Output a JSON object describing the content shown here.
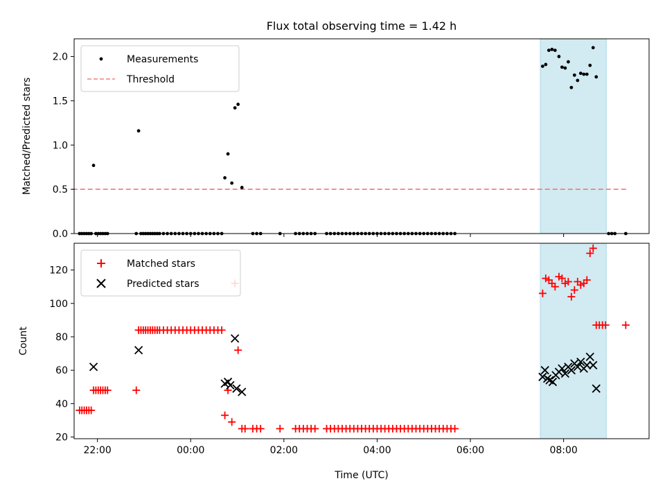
{
  "title": "Flux total observing time = 1.42 h",
  "colors": {
    "measurement": "#000000",
    "threshold": "#f08080",
    "matched": "#ff0000",
    "predicted": "#000000",
    "span": "#add8e6"
  },
  "chart_data": [
    {
      "type": "scatter",
      "ylabel": "Matched/Predicted stars",
      "xlabel": "",
      "ylim": [
        0,
        2.2
      ],
      "yticks": [
        0.0,
        0.5,
        1.0,
        1.5,
        2.0
      ],
      "ytick_labels": [
        "0.0",
        "0.5",
        "1.0",
        "1.5",
        "2.0"
      ],
      "xlim": [
        "21:30",
        "09:50"
      ],
      "grid": false,
      "legend": "top-left",
      "highlight_span": {
        "x": [
          "07:30",
          "08:55"
        ]
      },
      "threshold": {
        "name": "Threshold",
        "y": 0.5,
        "x": [
          "21:28",
          "09:22"
        ]
      },
      "series": [
        {
          "name": "Measurements",
          "points": [
            [
              "21:37",
              0
            ],
            [
              "21:40",
              0
            ],
            [
              "21:43",
              0
            ],
            [
              "21:46",
              0
            ],
            [
              "21:49",
              0
            ],
            [
              "21:52",
              0
            ],
            [
              "21:55",
              0.77
            ],
            [
              "21:58",
              0
            ],
            [
              "22:01",
              0
            ],
            [
              "22:04",
              0
            ],
            [
              "22:07",
              0
            ],
            [
              "22:10",
              0
            ],
            [
              "22:13",
              0
            ],
            [
              "22:50",
              0
            ],
            [
              "22:53",
              1.16
            ],
            [
              "22:56",
              0
            ],
            [
              "22:59",
              0
            ],
            [
              "23:02",
              0
            ],
            [
              "23:05",
              0
            ],
            [
              "23:08",
              0
            ],
            [
              "23:11",
              0
            ],
            [
              "23:14",
              0
            ],
            [
              "23:17",
              0
            ],
            [
              "23:20",
              0
            ],
            [
              "23:25",
              0
            ],
            [
              "23:30",
              0
            ],
            [
              "23:35",
              0
            ],
            [
              "23:40",
              0
            ],
            [
              "23:45",
              0
            ],
            [
              "23:50",
              0
            ],
            [
              "23:55",
              0
            ],
            [
              "00:00",
              0
            ],
            [
              "00:05",
              0
            ],
            [
              "00:10",
              0
            ],
            [
              "00:15",
              0
            ],
            [
              "00:20",
              0
            ],
            [
              "00:25",
              0
            ],
            [
              "00:30",
              0
            ],
            [
              "00:35",
              0
            ],
            [
              "00:40",
              0
            ],
            [
              "00:44",
              0.63
            ],
            [
              "00:48",
              0.9
            ],
            [
              "00:53",
              0.57
            ],
            [
              "00:57",
              1.42
            ],
            [
              "01:01",
              1.46
            ],
            [
              "01:06",
              0.52
            ],
            [
              "01:20",
              0
            ],
            [
              "01:25",
              0
            ],
            [
              "01:30",
              0
            ],
            [
              "01:55",
              0
            ],
            [
              "02:15",
              0
            ],
            [
              "02:20",
              0
            ],
            [
              "02:25",
              0
            ],
            [
              "02:30",
              0
            ],
            [
              "02:35",
              0
            ],
            [
              "02:40",
              0
            ],
            [
              "02:55",
              0
            ],
            [
              "03:00",
              0
            ],
            [
              "03:05",
              0
            ],
            [
              "03:10",
              0
            ],
            [
              "03:15",
              0
            ],
            [
              "03:20",
              0
            ],
            [
              "03:25",
              0
            ],
            [
              "03:30",
              0
            ],
            [
              "03:35",
              0
            ],
            [
              "03:40",
              0
            ],
            [
              "03:45",
              0
            ],
            [
              "03:50",
              0
            ],
            [
              "03:55",
              0
            ],
            [
              "04:00",
              0
            ],
            [
              "04:05",
              0
            ],
            [
              "04:10",
              0
            ],
            [
              "04:15",
              0
            ],
            [
              "04:20",
              0
            ],
            [
              "04:25",
              0
            ],
            [
              "04:30",
              0
            ],
            [
              "04:35",
              0
            ],
            [
              "04:40",
              0
            ],
            [
              "04:45",
              0
            ],
            [
              "04:50",
              0
            ],
            [
              "04:55",
              0
            ],
            [
              "05:00",
              0
            ],
            [
              "05:05",
              0
            ],
            [
              "05:10",
              0
            ],
            [
              "05:15",
              0
            ],
            [
              "05:20",
              0
            ],
            [
              "05:25",
              0
            ],
            [
              "05:30",
              0
            ],
            [
              "05:35",
              0
            ],
            [
              "05:40",
              0
            ],
            [
              "07:33",
              1.89
            ],
            [
              "07:37",
              1.91
            ],
            [
              "07:41",
              2.07
            ],
            [
              "07:45",
              2.08
            ],
            [
              "07:49",
              2.07
            ],
            [
              "07:54",
              2.0
            ],
            [
              "07:58",
              1.88
            ],
            [
              "08:02",
              1.87
            ],
            [
              "08:06",
              1.94
            ],
            [
              "08:10",
              1.65
            ],
            [
              "08:14",
              1.79
            ],
            [
              "08:18",
              1.73
            ],
            [
              "08:22",
              1.81
            ],
            [
              "08:26",
              1.8
            ],
            [
              "08:30",
              1.8
            ],
            [
              "08:34",
              1.9
            ],
            [
              "08:38",
              2.1
            ],
            [
              "08:42",
              1.77
            ],
            [
              "08:58",
              0
            ],
            [
              "09:02",
              0
            ],
            [
              "09:06",
              0
            ],
            [
              "09:20",
              0
            ]
          ]
        }
      ]
    },
    {
      "type": "scatter",
      "ylabel": "Count",
      "xlabel": "Time (UTC)",
      "ylim": [
        19,
        136
      ],
      "yticks": [
        20,
        40,
        60,
        80,
        100,
        120
      ],
      "ytick_labels": [
        "20",
        "40",
        "60",
        "80",
        "100",
        "120"
      ],
      "xlim": [
        "21:30",
        "09:50"
      ],
      "xticks": [
        "22:00",
        "00:00",
        "02:00",
        "04:00",
        "06:00",
        "08:00"
      ],
      "xtick_labels": [
        "22:00",
        "00:00",
        "02:00",
        "04:00",
        "06:00",
        "08:00"
      ],
      "grid": false,
      "legend": "top-left",
      "highlight_span": {
        "x": [
          "07:30",
          "08:55"
        ]
      },
      "series": [
        {
          "name": "Matched stars",
          "points": [
            [
              "21:37",
              36
            ],
            [
              "21:40",
              36
            ],
            [
              "21:43",
              36
            ],
            [
              "21:46",
              36
            ],
            [
              "21:49",
              36
            ],
            [
              "21:52",
              36
            ],
            [
              "21:55",
              48
            ],
            [
              "21:58",
              48
            ],
            [
              "22:01",
              48
            ],
            [
              "22:04",
              48
            ],
            [
              "22:07",
              48
            ],
            [
              "22:10",
              48
            ],
            [
              "22:13",
              48
            ],
            [
              "22:50",
              48
            ],
            [
              "22:53",
              84
            ],
            [
              "22:56",
              84
            ],
            [
              "22:59",
              84
            ],
            [
              "23:02",
              84
            ],
            [
              "23:05",
              84
            ],
            [
              "23:08",
              84
            ],
            [
              "23:11",
              84
            ],
            [
              "23:14",
              84
            ],
            [
              "23:17",
              84
            ],
            [
              "23:20",
              84
            ],
            [
              "23:25",
              84
            ],
            [
              "23:30",
              84
            ],
            [
              "23:35",
              84
            ],
            [
              "23:40",
              84
            ],
            [
              "23:45",
              84
            ],
            [
              "23:50",
              84
            ],
            [
              "23:55",
              84
            ],
            [
              "00:00",
              84
            ],
            [
              "00:05",
              84
            ],
            [
              "00:10",
              84
            ],
            [
              "00:15",
              84
            ],
            [
              "00:20",
              84
            ],
            [
              "00:25",
              84
            ],
            [
              "00:30",
              84
            ],
            [
              "00:35",
              84
            ],
            [
              "00:40",
              84
            ],
            [
              "00:44",
              33
            ],
            [
              "00:48",
              48
            ],
            [
              "00:53",
              29
            ],
            [
              "00:57",
              112
            ],
            [
              "01:01",
              72
            ],
            [
              "01:06",
              25
            ],
            [
              "01:10",
              25
            ],
            [
              "01:20",
              25
            ],
            [
              "01:25",
              25
            ],
            [
              "01:30",
              25
            ],
            [
              "01:55",
              25
            ],
            [
              "02:15",
              25
            ],
            [
              "02:20",
              25
            ],
            [
              "02:25",
              25
            ],
            [
              "02:30",
              25
            ],
            [
              "02:35",
              25
            ],
            [
              "02:40",
              25
            ],
            [
              "02:55",
              25
            ],
            [
              "03:00",
              25
            ],
            [
              "03:05",
              25
            ],
            [
              "03:10",
              25
            ],
            [
              "03:15",
              25
            ],
            [
              "03:20",
              25
            ],
            [
              "03:25",
              25
            ],
            [
              "03:30",
              25
            ],
            [
              "03:35",
              25
            ],
            [
              "03:40",
              25
            ],
            [
              "03:45",
              25
            ],
            [
              "03:50",
              25
            ],
            [
              "03:55",
              25
            ],
            [
              "04:00",
              25
            ],
            [
              "04:05",
              25
            ],
            [
              "04:10",
              25
            ],
            [
              "04:15",
              25
            ],
            [
              "04:20",
              25
            ],
            [
              "04:25",
              25
            ],
            [
              "04:30",
              25
            ],
            [
              "04:35",
              25
            ],
            [
              "04:40",
              25
            ],
            [
              "04:45",
              25
            ],
            [
              "04:50",
              25
            ],
            [
              "04:55",
              25
            ],
            [
              "05:00",
              25
            ],
            [
              "05:05",
              25
            ],
            [
              "05:10",
              25
            ],
            [
              "05:15",
              25
            ],
            [
              "05:20",
              25
            ],
            [
              "05:25",
              25
            ],
            [
              "05:30",
              25
            ],
            [
              "05:35",
              25
            ],
            [
              "05:40",
              25
            ],
            [
              "07:33",
              106
            ],
            [
              "07:37",
              115
            ],
            [
              "07:41",
              114
            ],
            [
              "07:45",
              112
            ],
            [
              "07:49",
              110
            ],
            [
              "07:54",
              116
            ],
            [
              "07:58",
              115
            ],
            [
              "08:02",
              112
            ],
            [
              "08:06",
              113
            ],
            [
              "08:10",
              104
            ],
            [
              "08:14",
              108
            ],
            [
              "08:18",
              113
            ],
            [
              "08:22",
              111
            ],
            [
              "08:26",
              112
            ],
            [
              "08:30",
              114
            ],
            [
              "08:34",
              130
            ],
            [
              "08:38",
              133
            ],
            [
              "08:42",
              87
            ],
            [
              "08:46",
              87
            ],
            [
              "08:50",
              87
            ],
            [
              "08:54",
              87
            ],
            [
              "09:20",
              87
            ]
          ]
        },
        {
          "name": "Predicted stars",
          "points": [
            [
              "21:55",
              62
            ],
            [
              "22:53",
              72
            ],
            [
              "00:44",
              52
            ],
            [
              "00:48",
              53
            ],
            [
              "00:51",
              51
            ],
            [
              "00:57",
              79
            ],
            [
              "00:59",
              49
            ],
            [
              "01:06",
              47
            ],
            [
              "07:33",
              56
            ],
            [
              "07:36",
              60
            ],
            [
              "07:39",
              55
            ],
            [
              "07:42",
              54
            ],
            [
              "07:46",
              53
            ],
            [
              "07:50",
              57
            ],
            [
              "07:54",
              59
            ],
            [
              "07:58",
              61
            ],
            [
              "08:02",
              58
            ],
            [
              "08:06",
              62
            ],
            [
              "08:10",
              60
            ],
            [
              "08:14",
              64
            ],
            [
              "08:18",
              62
            ],
            [
              "08:22",
              65
            ],
            [
              "08:26",
              61
            ],
            [
              "08:30",
              63
            ],
            [
              "08:34",
              68
            ],
            [
              "08:38",
              63
            ],
            [
              "08:42",
              49
            ]
          ]
        }
      ]
    }
  ]
}
